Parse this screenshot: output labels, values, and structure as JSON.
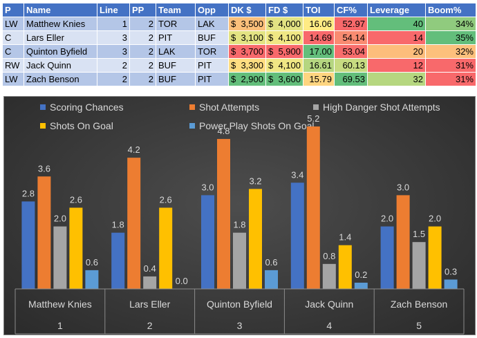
{
  "table": {
    "headers": [
      "P",
      "Name",
      "Line",
      "PP",
      "Team",
      "Opp",
      "DK $",
      "FD $",
      "TOI",
      "CF%",
      "Leverage",
      "Boom%"
    ],
    "rows": [
      {
        "pos": "LW",
        "name": "Matthew Knies",
        "line": "1",
        "pp": "2",
        "team": "TOR",
        "opp": "LAK",
        "dk": "3,500",
        "fd": "4,000",
        "toi": "16.06",
        "cf": "52.97",
        "leverage": "40",
        "boom": "34%"
      },
      {
        "pos": "C",
        "name": "Lars Eller",
        "line": "3",
        "pp": "2",
        "team": "PIT",
        "opp": "BUF",
        "dk": "3,100",
        "fd": "4,100",
        "toi": "14.69",
        "cf": "54.14",
        "leverage": "14",
        "boom": "35%"
      },
      {
        "pos": "C",
        "name": "Quinton Byfield",
        "line": "3",
        "pp": "2",
        "team": "LAK",
        "opp": "TOR",
        "dk": "3,700",
        "fd": "5,900",
        "toi": "17.00",
        "cf": "53.04",
        "leverage": "20",
        "boom": "32%"
      },
      {
        "pos": "RW",
        "name": "Jack Quinn",
        "line": "2",
        "pp": "2",
        "team": "BUF",
        "opp": "PIT",
        "dk": "3,300",
        "fd": "4,100",
        "toi": "16.61",
        "cf": "60.13",
        "leverage": "12",
        "boom": "31%"
      },
      {
        "pos": "LW",
        "name": "Zach Benson",
        "line": "2",
        "pp": "2",
        "team": "BUF",
        "opp": "PIT",
        "dk": "2,900",
        "fd": "3,600",
        "toi": "15.79",
        "cf": "69.53",
        "leverage": "32",
        "boom": "31%"
      }
    ],
    "currency_symbol": "$",
    "cell_colors": {
      "dk": [
        "#fbc07b",
        "#e3e383",
        "#f8696b",
        "#fedd81",
        "#63be7b"
      ],
      "fd": [
        "#e3e383",
        "#f0e784",
        "#f8696b",
        "#f0e784",
        "#63be7b"
      ],
      "toi": [
        "#ffeb84",
        "#f8696b",
        "#63be7b",
        "#b5d680",
        "#fed580"
      ],
      "cf": [
        "#f8696b",
        "#f98b71",
        "#f86d6c",
        "#c7db81",
        "#63be7b"
      ],
      "leverage": [
        "#63be7b",
        "#f8696b",
        "#fdbd7b",
        "#f8696b",
        "#b6d780"
      ],
      "boom": [
        "#90cb7e",
        "#63be7b",
        "#fdc07c",
        "#f8696b",
        "#f8696b"
      ]
    }
  },
  "chart_data": {
    "type": "bar",
    "categories": [
      "Matthew Knies",
      "Lars Eller",
      "Quinton Byfield",
      "Jack Quinn",
      "Zach Benson"
    ],
    "category_numbers": [
      "1",
      "2",
      "3",
      "4",
      "5"
    ],
    "series": [
      {
        "name": "Scoring Chances",
        "color": "#4472c4",
        "values": [
          2.8,
          1.8,
          3.0,
          3.4,
          2.0
        ],
        "labels": [
          "2.8",
          "1.8",
          "3.0",
          "3.4",
          "2.0"
        ]
      },
      {
        "name": "Shot Attempts",
        "color": "#ed7d31",
        "values": [
          3.6,
          4.2,
          4.8,
          5.2,
          3.0
        ],
        "labels": [
          "3.6",
          "4.2",
          "4.8",
          "5.2",
          "3.0"
        ]
      },
      {
        "name": "High Danger Shot Attempts",
        "color": "#a5a5a5",
        "values": [
          2.0,
          0.4,
          1.8,
          0.8,
          1.5
        ],
        "labels": [
          "2.0",
          "0.4",
          "1.8",
          "0.8",
          "1.5"
        ]
      },
      {
        "name": "Shots On Goal",
        "color": "#ffc000",
        "values": [
          2.6,
          2.6,
          3.2,
          1.4,
          2.0
        ],
        "labels": [
          "2.6",
          "2.6",
          "3.2",
          "1.4",
          "2.0"
        ]
      },
      {
        "name": "Power Play Shots On Goal",
        "color": "#5b9bd5",
        "values": [
          0.6,
          0.0,
          0.6,
          0.2,
          0.3
        ],
        "labels": [
          "0.6",
          "0.0",
          "0.6",
          "0.2",
          "0.3"
        ]
      }
    ],
    "legend_position": "top",
    "grid": false,
    "background": "#404040",
    "text_color": "#d9d9d9",
    "ylim": [
      0,
      6
    ]
  }
}
